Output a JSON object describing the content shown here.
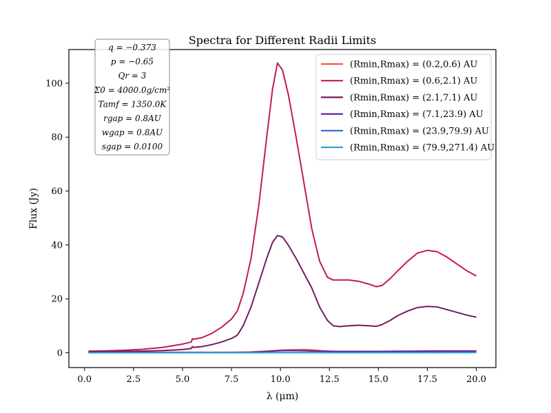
{
  "chart_data": {
    "type": "line",
    "title": "Spectra for Different Radii Limits",
    "xlabel": "λ (μm)",
    "ylabel": "Flux (Jy)",
    "xlim": [
      -0.8,
      21.0
    ],
    "ylim": [
      -5.5,
      112.5
    ],
    "xticks": [
      0.0,
      2.5,
      5.0,
      7.5,
      10.0,
      12.5,
      15.0,
      17.5,
      20.0
    ],
    "xtick_labels": [
      "0.0",
      "2.5",
      "5.0",
      "7.5",
      "10.0",
      "12.5",
      "15.0",
      "17.5",
      "20.0"
    ],
    "yticks": [
      0,
      20,
      40,
      60,
      80,
      100
    ],
    "ytick_labels": [
      "0",
      "20",
      "40",
      "60",
      "80",
      "100"
    ],
    "grid": false,
    "legend_position": "top-right",
    "parameters": [
      "q = −0.373",
      "p = −0.65",
      "Qr = 3",
      "Σ0 = 4000.0g/cm²",
      "Tamf = 1350.0K",
      "rgap = 0.8AU",
      "wgap = 0.8AU",
      "sgap = 0.0100"
    ],
    "series": [
      {
        "name": "(Rmin,Rmax) = (0.2,0.6) AU",
        "color": "#f05a2a",
        "x": [
          0.2,
          2,
          4,
          5.5,
          6,
          7,
          7.7,
          8.5,
          9.3,
          9.9,
          10.5,
          11.2,
          11.6,
          12.3,
          13,
          14,
          15,
          16,
          17,
          18,
          19,
          20
        ],
        "y": [
          0.2,
          0.2,
          0.2,
          0.2,
          0.2,
          0.2,
          0.2,
          0.3,
          0.6,
          0.9,
          1.1,
          1.2,
          1.1,
          0.6,
          0.4,
          0.3,
          0.3,
          0.3,
          0.3,
          0.3,
          0.3,
          0.3
        ]
      },
      {
        "name": "(Rmin,Rmax) = (0.6,2.1) AU",
        "color": "#c21855",
        "x": [
          0.2,
          1,
          2,
          3,
          4,
          5,
          5.45,
          5.5,
          5.55,
          6,
          6.5,
          7,
          7.5,
          7.8,
          8.1,
          8.5,
          8.9,
          9.3,
          9.6,
          9.85,
          10.1,
          10.4,
          10.8,
          11.2,
          11.6,
          12,
          12.4,
          12.7,
          13,
          13.5,
          14,
          14.5,
          14.9,
          15.2,
          15.6,
          16,
          16.5,
          17,
          17.5,
          18,
          18.5,
          19,
          19.5,
          20
        ],
        "y": [
          0.6,
          0.7,
          0.9,
          1.3,
          2.0,
          3.2,
          4.0,
          5.2,
          5.0,
          5.6,
          7.2,
          9.5,
          12.5,
          15.5,
          22,
          35,
          55,
          80,
          98,
          107.5,
          105,
          96,
          80,
          63,
          46,
          34,
          28,
          27,
          27,
          27,
          26.5,
          25.5,
          24.5,
          25,
          27.5,
          30.5,
          34,
          37,
          38,
          37.5,
          35.5,
          33,
          30.5,
          28.5
        ]
      },
      {
        "name": "(Rmin,Rmax) = (2.1,7.1) AU",
        "color": "#73195e",
        "x": [
          0.2,
          1,
          2,
          3,
          4,
          5,
          5.45,
          5.5,
          5.55,
          6,
          6.5,
          7,
          7.5,
          7.8,
          8.1,
          8.5,
          8.9,
          9.3,
          9.6,
          9.85,
          10.1,
          10.4,
          10.8,
          11.2,
          11.6,
          12,
          12.4,
          12.7,
          13,
          13.5,
          14,
          14.5,
          14.9,
          15.2,
          15.6,
          16,
          16.5,
          17,
          17.5,
          18,
          18.5,
          19,
          19.5,
          20
        ],
        "y": [
          0.3,
          0.4,
          0.5,
          0.6,
          0.8,
          1.2,
          1.6,
          2.3,
          2.0,
          2.3,
          3.0,
          4.0,
          5.3,
          6.5,
          10,
          17,
          26,
          35,
          41,
          43.5,
          43,
          40,
          35,
          29.5,
          24,
          17,
          12,
          10,
          9.7,
          10,
          10.2,
          10,
          9.8,
          10.5,
          12,
          13.8,
          15.5,
          16.8,
          17.2,
          17,
          16,
          15,
          14,
          13.2
        ]
      },
      {
        "name": "(Rmin,Rmax) = (7.1,23.9) AU",
        "color": "#5e1fa0",
        "x": [
          0.2,
          2,
          4,
          6,
          7,
          8,
          8.5,
          9,
          9.5,
          10,
          10.5,
          11,
          11.5,
          12,
          12.5,
          13,
          14,
          15,
          16,
          17,
          18,
          19,
          20
        ],
        "y": [
          0.1,
          0.1,
          0.1,
          0.1,
          0.1,
          0.15,
          0.2,
          0.35,
          0.55,
          0.75,
          0.8,
          0.75,
          0.65,
          0.6,
          0.55,
          0.5,
          0.5,
          0.5,
          0.55,
          0.6,
          0.65,
          0.65,
          0.65
        ]
      },
      {
        "name": "(Rmin,Rmax) = (23.9,79.9) AU",
        "color": "#2f63d4",
        "x": [
          0.2,
          5,
          8,
          10,
          12,
          14,
          16,
          18,
          20
        ],
        "y": [
          0.02,
          0.02,
          0.04,
          0.08,
          0.08,
          0.08,
          0.1,
          0.12,
          0.13
        ]
      },
      {
        "name": "(Rmin,Rmax) = (79.9,271.4) AU",
        "color": "#2da3d6",
        "x": [
          0.2,
          5,
          10,
          15,
          20
        ],
        "y": [
          0.0,
          0.0,
          0.01,
          0.02,
          0.03
        ]
      }
    ]
  }
}
